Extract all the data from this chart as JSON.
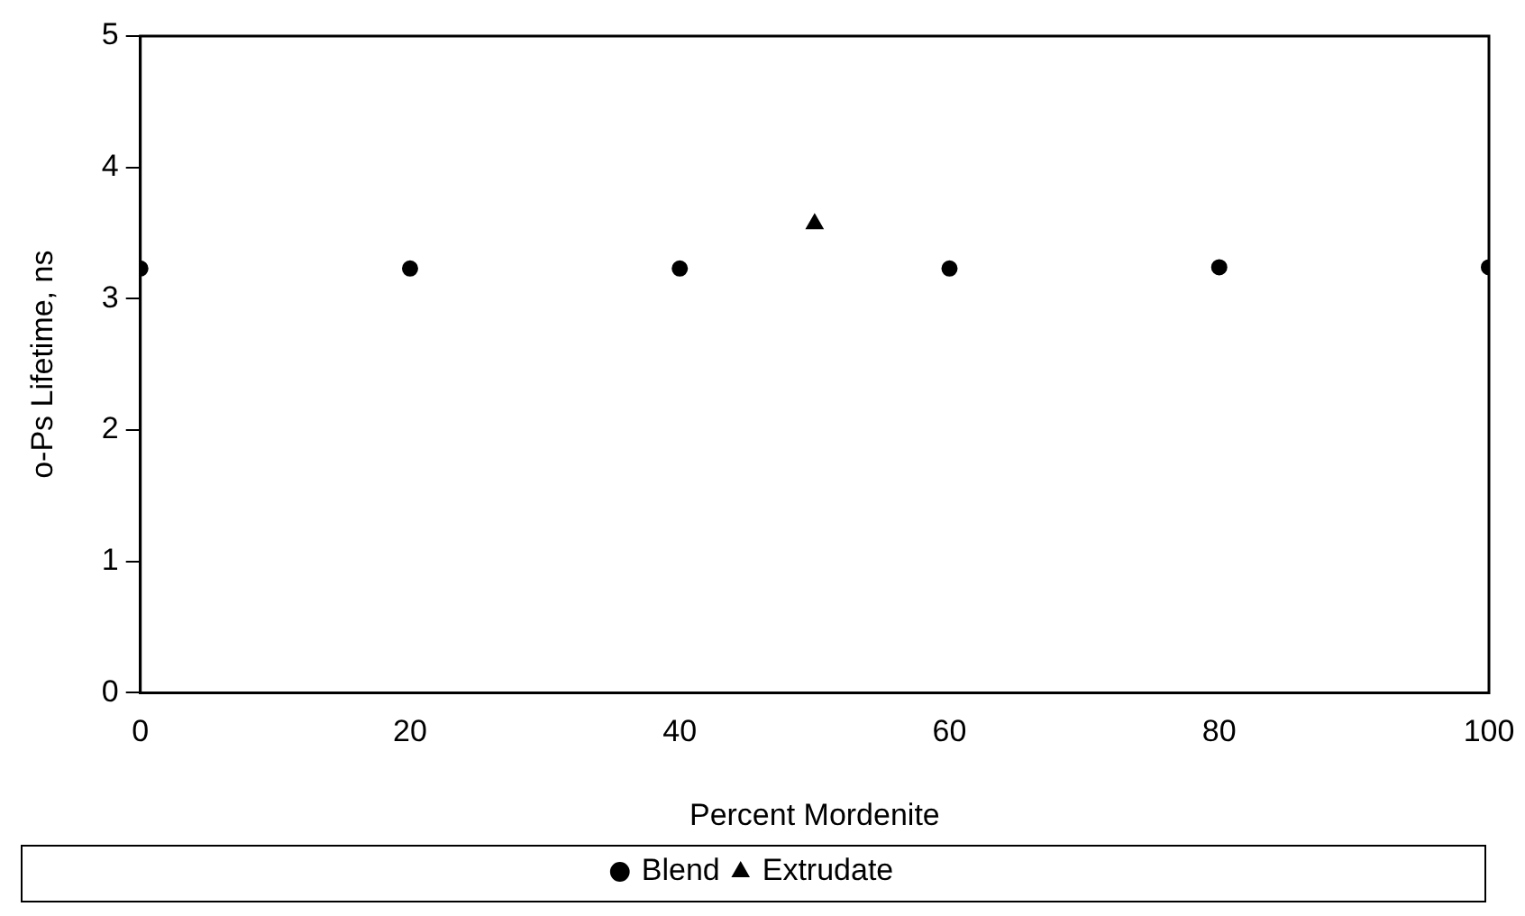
{
  "chart_data": {
    "type": "scatter",
    "xlabel": "Percent Mordenite",
    "ylabel": "o-Ps Lifetime, ns",
    "xlim": [
      0,
      100
    ],
    "xticks": [
      0,
      20,
      40,
      60,
      80,
      100
    ],
    "ylim": [
      0,
      5
    ],
    "yticks": [
      0,
      1,
      2,
      3,
      4,
      5
    ],
    "grid": false,
    "legend": "bottom",
    "series": [
      {
        "name": "Blend",
        "color": "#000000",
        "marker": "circle",
        "x": [
          0,
          20,
          40,
          60,
          80,
          100
        ],
        "values": [
          3.23,
          3.23,
          3.23,
          3.23,
          3.24,
          3.24
        ]
      },
      {
        "name": "Extrudate",
        "color": "#000000",
        "marker": "triangle",
        "x": [
          50
        ],
        "values": [
          3.57
        ]
      }
    ]
  }
}
